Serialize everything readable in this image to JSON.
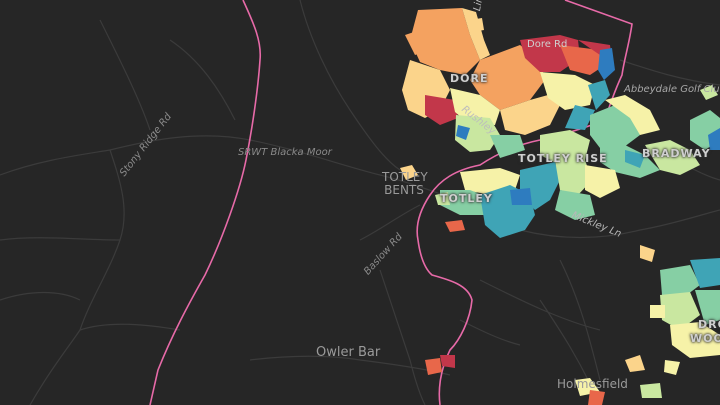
{
  "colors": {
    "background": "#262626",
    "road": "#3b3b3b",
    "boundary": "#e76aa8",
    "label": "#8e8e8e",
    "scale": [
      "#c2374a",
      "#e8674a",
      "#f4a260",
      "#fbd48b",
      "#f6f2a8",
      "#c9e7a0",
      "#86cfa4",
      "#3fa4b6",
      "#2e7cbf"
    ]
  },
  "labels": {
    "srwt_blacka_moor": "SRWT Blacka Moor",
    "stony_ridge_rd": "Stony Ridge Rd",
    "totley_bents": "TOTLEY BENTS",
    "baslow_rd": "Baslow Rd",
    "owler_bar": "Owler Bar",
    "holmesfield": "Holmesfield",
    "mickley_ln": "Mickley Ln",
    "abbeydale_golf": "Abbeydale Golf Clu",
    "totley_rise": "TOTLEY RISE",
    "bradway": "BRADWAY",
    "totley": "TOTLEY",
    "dore": "DORE",
    "dore_rd": "Dore Rd",
    "rushley": "Rushley",
    "lin": "Lin",
    "dro": "DRO",
    "woo": "WOO"
  }
}
